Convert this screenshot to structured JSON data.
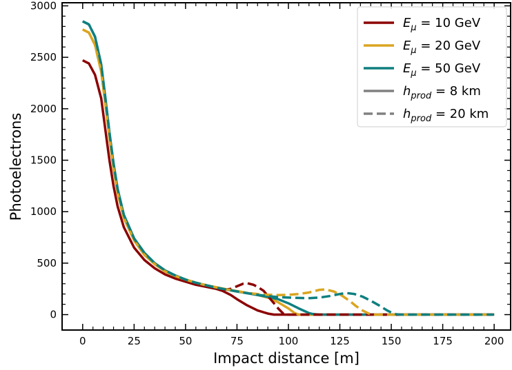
{
  "chart_data": {
    "type": "line",
    "xlabel": "Impact distance [m]",
    "ylabel": "Photoelectrons",
    "xlim": [
      -10,
      208
    ],
    "ylim": [
      -150,
      3030
    ],
    "xticks": [
      0,
      25,
      50,
      75,
      100,
      125,
      150,
      175,
      200
    ],
    "yticks": [
      0,
      500,
      1000,
      1500,
      2000,
      2500,
      3000
    ],
    "grid": false,
    "legend_position": "top-right",
    "legend": [
      {
        "label_main": "E",
        "label_sub": "μ",
        "label_rest": " = 10 GeV",
        "color": "#8b0000",
        "dash": "solid"
      },
      {
        "label_main": "E",
        "label_sub": "μ",
        "label_rest": " = 20 GeV",
        "color": "#daa520",
        "dash": "solid"
      },
      {
        "label_main": "E",
        "label_sub": "μ",
        "label_rest": " = 50 GeV",
        "color": "#0f7f7f",
        "dash": "solid"
      },
      {
        "label_main": "h",
        "label_sub": "prod",
        "label_rest": " = 8 km",
        "color": "#808080",
        "dash": "solid"
      },
      {
        "label_main": "h",
        "label_sub": "prod",
        "label_rest": " = 20 km",
        "color": "#808080",
        "dash": "dashed"
      }
    ],
    "series": [
      {
        "energy": "E_mu = 10 GeV",
        "height": "h_prod = 8 km",
        "color": "#8b0000",
        "dash": "solid",
        "x": [
          0,
          3,
          6,
          9,
          11,
          13,
          15,
          17,
          20,
          25,
          30,
          35,
          40,
          45,
          50,
          55,
          60,
          65,
          68,
          72,
          75,
          80,
          85,
          90,
          93,
          95,
          100,
          110,
          120,
          140,
          160,
          180,
          200
        ],
        "y": [
          2470,
          2440,
          2330,
          2100,
          1800,
          1500,
          1250,
          1050,
          850,
          650,
          530,
          450,
          390,
          350,
          320,
          290,
          270,
          250,
          230,
          190,
          150,
          90,
          40,
          10,
          0,
          0,
          0,
          0,
          0,
          0,
          0,
          0,
          0
        ]
      },
      {
        "energy": "E_mu = 10 GeV",
        "height": "h_prod = 20 km",
        "color": "#8b0000",
        "dash": "dashed",
        "x": [
          68,
          72,
          75,
          78,
          80,
          83,
          85,
          88,
          90,
          93,
          95,
          97,
          98,
          100,
          110,
          120,
          140,
          160,
          180,
          200
        ],
        "y": [
          240,
          250,
          275,
          300,
          305,
          290,
          270,
          230,
          180,
          110,
          60,
          20,
          0,
          0,
          0,
          0,
          0,
          0,
          0,
          0
        ]
      },
      {
        "energy": "E_mu = 20 GeV",
        "height": "h_prod = 8 km",
        "color": "#daa520",
        "dash": "solid",
        "x": [
          0,
          3,
          6,
          9,
          11,
          13,
          15,
          17,
          20,
          25,
          30,
          35,
          40,
          45,
          50,
          55,
          60,
          65,
          70,
          75,
          80,
          85,
          90,
          95,
          100,
          103,
          105,
          110,
          120,
          140,
          160,
          180,
          200
        ],
        "y": [
          2770,
          2740,
          2620,
          2360,
          2050,
          1720,
          1420,
          1180,
          940,
          720,
          580,
          490,
          420,
          375,
          340,
          310,
          285,
          265,
          245,
          228,
          210,
          190,
          165,
          120,
          60,
          15,
          0,
          0,
          0,
          0,
          0,
          0,
          0
        ]
      },
      {
        "energy": "E_mu = 20 GeV",
        "height": "h_prod = 20 km",
        "color": "#daa520",
        "dash": "dashed",
        "x": [
          0,
          3,
          6,
          9,
          11,
          13,
          15,
          17,
          20,
          25,
          30,
          35,
          40,
          45,
          50,
          55,
          60,
          65,
          70,
          75,
          80,
          85,
          90,
          95,
          100,
          105,
          110,
          115,
          118,
          122,
          126,
          130,
          133,
          136,
          139,
          142,
          145,
          150,
          160,
          180,
          200
        ],
        "y": [
          2770,
          2740,
          2620,
          2360,
          2050,
          1720,
          1420,
          1180,
          940,
          720,
          580,
          490,
          420,
          375,
          340,
          310,
          285,
          265,
          245,
          228,
          210,
          200,
          193,
          190,
          192,
          200,
          215,
          240,
          245,
          225,
          185,
          130,
          80,
          40,
          10,
          0,
          0,
          0,
          0,
          0,
          0
        ]
      },
      {
        "energy": "E_mu = 50 GeV",
        "height": "h_prod = 8 km",
        "color": "#0f7f7f",
        "dash": "solid",
        "x": [
          0,
          3,
          6,
          9,
          11,
          13,
          15,
          17,
          20,
          25,
          30,
          35,
          40,
          45,
          50,
          55,
          60,
          65,
          70,
          75,
          80,
          85,
          90,
          95,
          100,
          105,
          110,
          112,
          115,
          120,
          140,
          160,
          180,
          200
        ],
        "y": [
          2850,
          2820,
          2700,
          2430,
          2110,
          1770,
          1470,
          1220,
          970,
          740,
          600,
          500,
          430,
          380,
          340,
          310,
          285,
          262,
          243,
          225,
          208,
          190,
          172,
          150,
          110,
          60,
          15,
          5,
          0,
          0,
          0,
          0,
          0,
          0
        ]
      },
      {
        "energy": "E_mu = 50 GeV",
        "height": "h_prod = 20 km",
        "color": "#0f7f7f",
        "dash": "dashed",
        "x": [
          0,
          3,
          6,
          9,
          11,
          13,
          15,
          17,
          20,
          25,
          30,
          35,
          40,
          45,
          50,
          55,
          60,
          65,
          70,
          75,
          80,
          85,
          90,
          95,
          100,
          105,
          110,
          115,
          120,
          125,
          128,
          132,
          136,
          140,
          144,
          148,
          150,
          152,
          154,
          160,
          180,
          200
        ],
        "y": [
          2850,
          2820,
          2700,
          2430,
          2110,
          1770,
          1470,
          1220,
          970,
          740,
          600,
          500,
          430,
          380,
          340,
          310,
          285,
          262,
          243,
          225,
          208,
          192,
          180,
          170,
          165,
          162,
          160,
          165,
          180,
          200,
          210,
          200,
          175,
          135,
          90,
          40,
          20,
          5,
          0,
          0,
          0,
          0
        ]
      }
    ]
  }
}
